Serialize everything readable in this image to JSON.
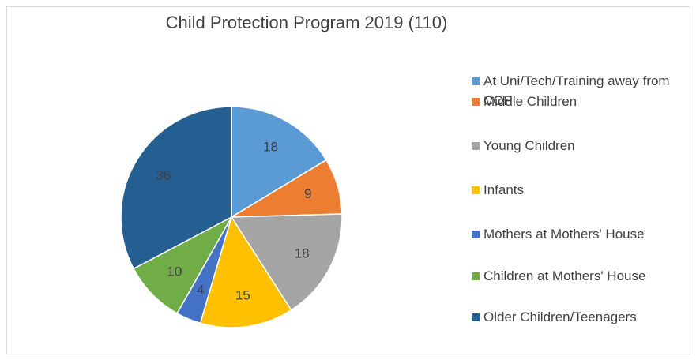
{
  "chart_data": {
    "type": "pie",
    "title": "Child Protection Program 2019 (110)",
    "categories": [
      "At Uni/Tech/Training away from COF",
      "Middle Children",
      "Young Children",
      "Infants",
      "Mothers at Mothers' House",
      "Children at Mothers' House",
      "Older Children/Teenagers"
    ],
    "values": [
      18,
      9,
      18,
      15,
      4,
      10,
      36
    ],
    "colors": [
      "#5b9bd5",
      "#ed7d31",
      "#a5a5a5",
      "#ffc000",
      "#4472c4",
      "#70ad47",
      "#255e91"
    ],
    "legend": "right"
  }
}
